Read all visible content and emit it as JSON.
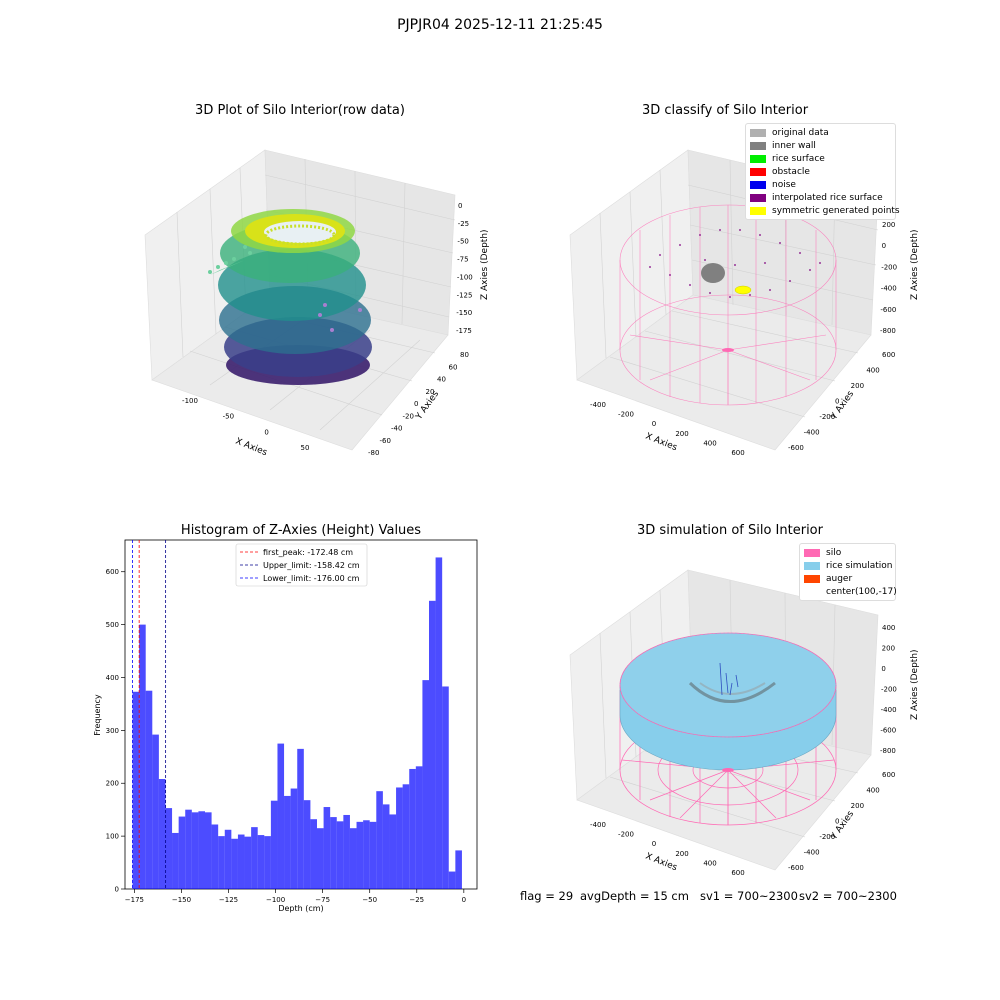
{
  "suptitle": "PJPJR04 2025-12-11 21:25:45",
  "chart_data": [
    {
      "type": "scatter",
      "title": "3D Plot of Silo Interior(row data)",
      "xlabel": "X Axies",
      "ylabel": "Y Axies",
      "zlabel": "Z Axies (Depth)",
      "x_ticks": [
        "-100",
        "-50",
        "0",
        "50"
      ],
      "y_ticks": [
        "-80",
        "-60",
        "-40",
        "-20",
        "0",
        "20",
        "40",
        "60",
        "80"
      ],
      "z_ticks": [
        "0",
        "-25",
        "-50",
        "-75",
        "-100",
        "-125",
        "-150",
        "-175"
      ],
      "colormap": "viridis"
    },
    {
      "type": "scatter",
      "title": "3D classify of Silo Interior",
      "xlabel": "X Axies",
      "ylabel": "Y Axies",
      "zlabel": "Z Axies (Depth)",
      "x_ticks": [
        "-400",
        "-200",
        "0",
        "200",
        "400",
        "600"
      ],
      "y_ticks": [
        "-600",
        "-400",
        "-200",
        "0",
        "200",
        "400",
        "600"
      ],
      "z_ticks": [
        "200",
        "0",
        "-200",
        "-400",
        "-600",
        "-800"
      ],
      "legend": [
        {
          "label": "original data",
          "color": "#b0b0b0"
        },
        {
          "label": "inner wall",
          "color": "#808080"
        },
        {
          "label": "rice surface",
          "color": "#00ee00"
        },
        {
          "label": "obstacle",
          "color": "#ff0000"
        },
        {
          "label": "noise",
          "color": "#0000ee"
        },
        {
          "label": "interpolated rice surface",
          "color": "#800080"
        },
        {
          "label": "symmetric generated points",
          "color": "#ffff00"
        }
      ]
    },
    {
      "type": "bar",
      "title": "Histogram of Z-Axies (Height) Values",
      "xlabel": "Depth (cm)",
      "ylabel": "Frequency",
      "xlim": [
        -180,
        7
      ],
      "ylim": [
        0,
        660
      ],
      "x_ticks": [
        "−175",
        "−150",
        "−125",
        "−100",
        "−75",
        "−50",
        "−25",
        "0"
      ],
      "y_ticks": [
        "0",
        "100",
        "200",
        "300",
        "400",
        "500",
        "600"
      ],
      "bin_start": -176.0,
      "bin_width": 3.5,
      "values": [
        373,
        500,
        375,
        292,
        208,
        153,
        106,
        137,
        150,
        145,
        147,
        145,
        122,
        100,
        112,
        95,
        103,
        99,
        117,
        102,
        100,
        167,
        275,
        176,
        190,
        265,
        168,
        132,
        115,
        155,
        136,
        128,
        140,
        115,
        127,
        130,
        127,
        185,
        160,
        141,
        192,
        198,
        227,
        232,
        395,
        545,
        627,
        383,
        33,
        73
      ],
      "bar_color": "#0000ff",
      "vlines": [
        {
          "label": "first_peak: -172.48 cm",
          "value": -172.48,
          "color": "#ff0000"
        },
        {
          "label": "Upper_limit: -158.42 cm",
          "value": -158.42,
          "color": "#00008b"
        },
        {
          "label": "Lower_limit: -176.00 cm",
          "value": -176.0,
          "color": "#0000ff"
        }
      ]
    },
    {
      "type": "scatter",
      "title": "3D simulation of Silo Interior",
      "xlabel": "X Axies",
      "ylabel": "Y Axies",
      "zlabel": "Z Axies (Depth)",
      "x_ticks": [
        "-400",
        "-200",
        "0",
        "200",
        "400",
        "600"
      ],
      "y_ticks": [
        "-600",
        "-400",
        "-200",
        "0",
        "200",
        "400",
        "600"
      ],
      "z_ticks": [
        "400",
        "200",
        "0",
        "-200",
        "-400",
        "-600",
        "-800"
      ],
      "legend": [
        {
          "label": "silo",
          "color": "#ff69b4"
        },
        {
          "label": "rice simulation",
          "color": "#87ceeb"
        },
        {
          "label": "auger",
          "color": "#ff4500"
        },
        {
          "label": "center(100,-17)",
          "color": ""
        }
      ]
    }
  ],
  "status": {
    "flag": "flag = 29",
    "avg_depth": "avgDepth = 15 cm",
    "sv1": "sv1 = 700~2300",
    "sv2": "sv2 = 700~2300"
  }
}
